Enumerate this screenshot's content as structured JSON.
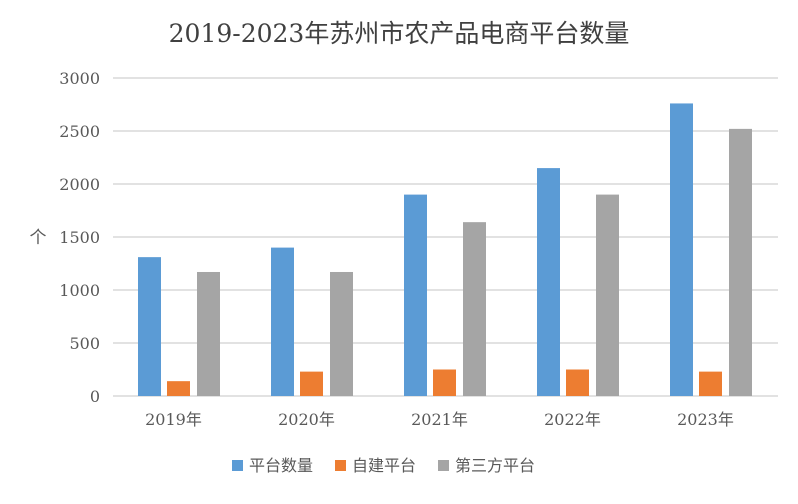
{
  "chart_data": {
    "type": "bar",
    "title": "2019-2023年苏州市农产品电商平台数量",
    "xlabel": "",
    "ylabel": "个",
    "ylim": [
      0,
      3000
    ],
    "yticks": [
      "0",
      "500",
      "1000",
      "1500",
      "2000",
      "2500",
      "3000"
    ],
    "grid": true,
    "legend_position": "bottom",
    "categories": [
      "2019年",
      "2020年",
      "2021年",
      "2022年",
      "2023年"
    ],
    "series": [
      {
        "name": "平台数量",
        "color": "#5b9bd5",
        "values": [
          1310,
          1400,
          1900,
          2150,
          2760
        ]
      },
      {
        "name": "自建平台",
        "color": "#ed7d31",
        "values": [
          140,
          230,
          250,
          250,
          230
        ]
      },
      {
        "name": "第三方平台",
        "color": "#a5a5a5",
        "values": [
          1170,
          1170,
          1640,
          1900,
          2520
        ]
      }
    ]
  }
}
